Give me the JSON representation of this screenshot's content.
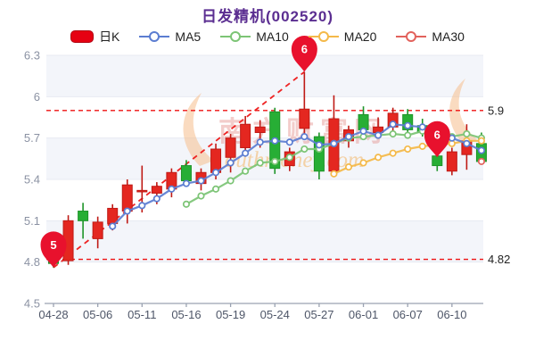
{
  "chart_data": {
    "type": "candlestick",
    "title": "日发精机(002520)",
    "legend_position": "top",
    "grid": "horizontal-bands",
    "ylim": [
      4.5,
      6.3
    ],
    "y_ticks": [
      "6.3",
      "6",
      "5.7",
      "5.4",
      "5.1",
      "4.8",
      "4.5"
    ],
    "y_tick_values": [
      6.3,
      6.0,
      5.7,
      5.4,
      5.1,
      4.8,
      4.5
    ],
    "x_labels": [
      "04-28",
      "05-06",
      "05-11",
      "05-16",
      "05-19",
      "05-24",
      "05-27",
      "06-01",
      "06-07",
      "06-10"
    ],
    "x_label_indices": [
      0,
      3,
      6,
      9,
      12,
      15,
      18,
      21,
      24,
      27
    ],
    "num_points": 30,
    "candles": [
      {
        "o": 4.82,
        "c": 4.79,
        "l": 4.76,
        "h": 4.84
      },
      {
        "o": 4.81,
        "c": 5.1,
        "l": 4.78,
        "h": 5.14
      },
      {
        "o": 5.17,
        "c": 5.1,
        "l": 4.97,
        "h": 5.23
      },
      {
        "o": 4.97,
        "c": 5.09,
        "l": 4.9,
        "h": 5.13
      },
      {
        "o": 5.08,
        "c": 5.19,
        "l": 5.03,
        "h": 5.22
      },
      {
        "o": 5.17,
        "c": 5.36,
        "l": 5.08,
        "h": 5.4
      },
      {
        "o": 5.31,
        "c": 5.32,
        "l": 5.16,
        "h": 5.5
      },
      {
        "o": 5.3,
        "c": 5.35,
        "l": 5.22,
        "h": 5.38
      },
      {
        "o": 5.33,
        "c": 5.45,
        "l": 5.27,
        "h": 5.48
      },
      {
        "o": 5.5,
        "c": 5.39,
        "l": 5.35,
        "h": 5.54
      },
      {
        "o": 5.37,
        "c": 5.45,
        "l": 5.32,
        "h": 5.48
      },
      {
        "o": 5.45,
        "c": 5.62,
        "l": 5.4,
        "h": 5.66
      },
      {
        "o": 5.56,
        "c": 5.7,
        "l": 5.45,
        "h": 5.73
      },
      {
        "o": 5.63,
        "c": 5.8,
        "l": 5.57,
        "h": 5.86
      },
      {
        "o": 5.74,
        "c": 5.78,
        "l": 5.63,
        "h": 5.83
      },
      {
        "o": 5.89,
        "c": 5.48,
        "l": 5.44,
        "h": 5.92
      },
      {
        "o": 5.5,
        "c": 5.6,
        "l": 5.46,
        "h": 5.63
      },
      {
        "o": 5.77,
        "c": 5.91,
        "l": 5.73,
        "h": 6.18
      },
      {
        "o": 5.71,
        "c": 5.46,
        "l": 5.4,
        "h": 5.74
      },
      {
        "o": 5.46,
        "c": 5.84,
        "l": 5.44,
        "h": 6.01
      },
      {
        "o": 5.68,
        "c": 5.76,
        "l": 5.63,
        "h": 5.79
      },
      {
        "o": 5.87,
        "c": 5.76,
        "l": 5.71,
        "h": 5.93
      },
      {
        "o": 5.74,
        "c": 5.78,
        "l": 5.7,
        "h": 5.85
      },
      {
        "o": 5.78,
        "c": 5.88,
        "l": 5.73,
        "h": 5.92
      },
      {
        "o": 5.87,
        "c": 5.76,
        "l": 5.71,
        "h": 5.91
      },
      {
        "o": 5.79,
        "c": 5.74,
        "l": 5.71,
        "h": 5.84
      },
      {
        "o": 5.57,
        "c": 5.5,
        "l": 5.46,
        "h": 5.62
      },
      {
        "o": 5.46,
        "c": 5.6,
        "l": 5.43,
        "h": 5.63
      },
      {
        "o": 5.58,
        "c": 5.68,
        "l": 5.47,
        "h": 5.8
      },
      {
        "o": 5.66,
        "c": 5.53,
        "l": 5.51,
        "h": 5.74
      }
    ],
    "series": [
      {
        "name": "MA5",
        "values": [
          null,
          null,
          null,
          null,
          5.06,
          5.17,
          5.21,
          5.26,
          5.33,
          5.37,
          5.39,
          5.45,
          5.52,
          5.59,
          5.67,
          5.68,
          5.67,
          5.71,
          5.65,
          5.66,
          5.71,
          5.75,
          5.72,
          5.8,
          5.79,
          5.78,
          5.73,
          5.7,
          5.66,
          5.61
        ]
      },
      {
        "name": "MA10",
        "values": [
          null,
          null,
          null,
          null,
          null,
          null,
          null,
          null,
          null,
          5.22,
          5.28,
          5.33,
          5.39,
          5.46,
          5.52,
          5.53,
          5.56,
          5.62,
          5.62,
          5.66,
          5.7,
          5.71,
          5.72,
          5.73,
          5.72,
          5.75,
          5.74,
          5.71,
          5.73,
          5.7
        ]
      },
      {
        "name": "MA20",
        "values": [
          null,
          null,
          null,
          null,
          null,
          null,
          null,
          null,
          null,
          null,
          null,
          null,
          null,
          null,
          null,
          null,
          null,
          null,
          null,
          5.44,
          5.49,
          5.52,
          5.56,
          5.59,
          5.62,
          5.64,
          5.65,
          5.66,
          5.68,
          5.68
        ]
      },
      {
        "name": "MA30",
        "values": [
          null,
          null,
          null,
          null,
          null,
          null,
          null,
          null,
          null,
          null,
          null,
          null,
          null,
          null,
          null,
          null,
          null,
          null,
          null,
          null,
          null,
          null,
          null,
          null,
          null,
          null,
          null,
          null,
          null,
          5.53
        ]
      }
    ],
    "ref_lines": [
      {
        "value": 5.9,
        "label": "5.9"
      },
      {
        "value": 4.82,
        "label": "4.82"
      }
    ],
    "trend_line": {
      "from_index": 0,
      "from_value": 4.76,
      "to_index": 17,
      "to_value": 6.18
    },
    "markers": [
      {
        "label": "5",
        "index": 0,
        "value": 4.76
      },
      {
        "label": "6",
        "index": 17,
        "value": 6.18
      },
      {
        "label": "6",
        "index": 26,
        "value": 5.56
      }
    ]
  },
  "legend": {
    "items": [
      {
        "label": "日K",
        "type": "candle",
        "color": "#e60012"
      },
      {
        "label": "MA5",
        "type": "ma",
        "color": "#5b7dd1"
      },
      {
        "label": "MA10",
        "type": "ma",
        "color": "#7cc475"
      },
      {
        "label": "MA20",
        "type": "ma",
        "color": "#f4b949"
      },
      {
        "label": "MA30",
        "type": "ma",
        "color": "#e2625c"
      }
    ]
  },
  "watermark": {
    "text_cn": "南方财富网",
    "text_en": "outhmoney.com"
  },
  "colors": {
    "up": "#e42720",
    "up_stroke": "#bf1a15",
    "down": "#27ae35",
    "down_stroke": "#1d9428",
    "ma5": "#5b7dd1",
    "ma10": "#7cc475",
    "ma20": "#f4b949",
    "ma30": "#e2625c",
    "ref_line": "#ee1111",
    "trend_line": "#ee2222",
    "marker": "#e8112d",
    "band": "#f3f5fa",
    "grid": "#e7eaf2",
    "axis_line": "#9aa2b1",
    "x_label": "#4e5668",
    "y_label": "#8b92a3",
    "ref_label": "#222222",
    "title": "#5b2e91",
    "watermark_cn": "rgba(226,130,124,0.40)",
    "watermark_en": "rgba(243,179,96,0.55)",
    "watermark_swoosh": "rgba(246,190,140,0.55)"
  }
}
